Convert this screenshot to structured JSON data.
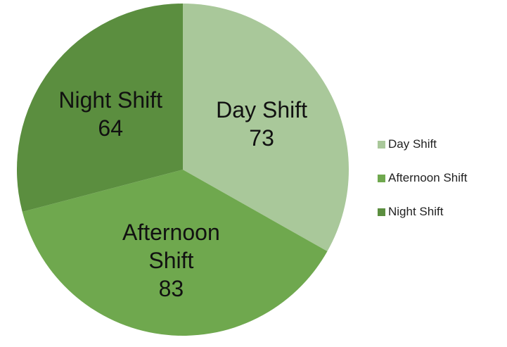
{
  "chart_data": {
    "type": "pie",
    "categories": [
      "Day Shift",
      "Afternoon Shift",
      "Night Shift"
    ],
    "values": [
      73,
      83,
      64
    ],
    "colors": [
      "#a9c89a",
      "#6fa84e",
      "#5b8e3f"
    ],
    "legend": "right"
  }
}
